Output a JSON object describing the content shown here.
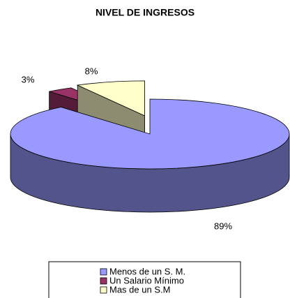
{
  "chart_data": {
    "type": "pie3d",
    "title": "NIVEL DE INGRESOS",
    "categories": [
      "Menos de un S. M.",
      "Un Salario Mínimo",
      "Mas de un S.M"
    ],
    "values": [
      89,
      3,
      8
    ],
    "value_labels": [
      "89%",
      "3%",
      "8%"
    ],
    "colors": [
      "#9999ff",
      "#993366",
      "#ffffcc"
    ]
  }
}
